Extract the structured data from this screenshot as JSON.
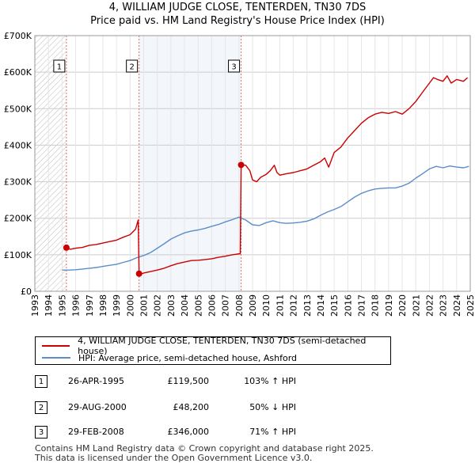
{
  "title_line1": "4, WILLIAM JUDGE CLOSE, TENTERDEN, TN30 7DS",
  "title_line2": "Price paid vs. HM Land Registry's House Price Index (HPI)",
  "colors": {
    "property": "#cc0000",
    "hpi": "#5b8ec7",
    "shade": "#dce6f2",
    "grid": "#cccccc",
    "marker_line": "#ee6666"
  },
  "chart_data": {
    "type": "line",
    "ylabel": "",
    "xlabel": "",
    "xlim": [
      1993,
      2025
    ],
    "ylim": [
      0,
      700000
    ],
    "y_ticks": [
      0,
      100000,
      200000,
      300000,
      400000,
      500000,
      600000,
      700000
    ],
    "y_tick_labels": [
      "£0",
      "£100K",
      "£200K",
      "£300K",
      "£400K",
      "£500K",
      "£600K",
      "£700K"
    ],
    "x_ticks": [
      1993,
      1994,
      1995,
      1996,
      1997,
      1998,
      1999,
      2000,
      2001,
      2002,
      2003,
      2004,
      2005,
      2006,
      2007,
      2008,
      2009,
      2010,
      2011,
      2012,
      2013,
      2014,
      2015,
      2016,
      2017,
      2018,
      2019,
      2020,
      2021,
      2022,
      2023,
      2024,
      2025
    ],
    "x_tick_labels": [
      "1993",
      "1994",
      "1995",
      "1996",
      "1997",
      "1998",
      "1999",
      "2000",
      "2001",
      "2002",
      "2003",
      "2004",
      "2005",
      "2006",
      "2007",
      "2008",
      "2009",
      "2010",
      "2011",
      "2012",
      "2013",
      "2014",
      "2015",
      "2016",
      "2017",
      "2018",
      "2019",
      "2020",
      "2021",
      "2022",
      "2023",
      "2024",
      "2025"
    ],
    "hatched_until": 1995.32,
    "series": [
      {
        "name": "4, WILLIAM JUDGE CLOSE, TENTERDEN, TN30 7DS (semi-detached house)",
        "x": [
          1995.32,
          1995.6,
          1996.0,
          1996.5,
          1997.0,
          1997.5,
          1998.0,
          1998.5,
          1999.0,
          1999.5,
          2000.0,
          2000.4,
          2000.6,
          2000.66,
          2000.75,
          2001.0,
          2001.5,
          2002.0,
          2002.5,
          2003.0,
          2003.5,
          2004.0,
          2004.5,
          2005.0,
          2005.5,
          2006.0,
          2006.5,
          2007.0,
          2007.5,
          2008.1,
          2008.16,
          2008.5,
          2008.8,
          2009.0,
          2009.3,
          2009.6,
          2010.0,
          2010.3,
          2010.6,
          2010.8,
          2011.0,
          2011.5,
          2012.0,
          2012.5,
          2013.0,
          2013.5,
          2014.0,
          2014.3,
          2014.6,
          2015.0,
          2015.5,
          2016.0,
          2016.5,
          2017.0,
          2017.5,
          2018.0,
          2018.5,
          2019.0,
          2019.5,
          2020.0,
          2020.5,
          2021.0,
          2021.5,
          2022.0,
          2022.3,
          2022.6,
          2023.0,
          2023.3,
          2023.6,
          2024.0,
          2024.5,
          2024.8
        ],
        "values": [
          119500,
          115000,
          118000,
          120000,
          126000,
          128000,
          132000,
          136000,
          140000,
          148000,
          155000,
          170000,
          195000,
          48200,
          46000,
          50000,
          54000,
          58000,
          63000,
          70000,
          76000,
          80000,
          84000,
          85000,
          87000,
          89000,
          93000,
          96000,
          100000,
          103000,
          346000,
          345000,
          330000,
          305000,
          300000,
          312000,
          320000,
          330000,
          345000,
          325000,
          318000,
          322000,
          325000,
          330000,
          335000,
          345000,
          355000,
          365000,
          340000,
          380000,
          395000,
          420000,
          440000,
          460000,
          475000,
          485000,
          490000,
          487000,
          492000,
          485000,
          500000,
          520000,
          545000,
          570000,
          585000,
          580000,
          575000,
          590000,
          570000,
          580000,
          575000,
          585000
        ]
      },
      {
        "name": "HPI: Average price, semi-detached house, Ashford",
        "x": [
          1995.0,
          1995.5,
          1996.0,
          1996.5,
          1997.0,
          1997.5,
          1998.0,
          1998.5,
          1999.0,
          1999.5,
          2000.0,
          2000.5,
          2001.0,
          2001.5,
          2002.0,
          2002.5,
          2003.0,
          2003.5,
          2004.0,
          2004.5,
          2005.0,
          2005.5,
          2006.0,
          2006.5,
          2007.0,
          2007.5,
          2008.0,
          2008.5,
          2009.0,
          2009.5,
          2010.0,
          2010.5,
          2011.0,
          2011.5,
          2012.0,
          2012.5,
          2013.0,
          2013.5,
          2014.0,
          2014.5,
          2015.0,
          2015.5,
          2016.0,
          2016.5,
          2017.0,
          2017.5,
          2018.0,
          2018.5,
          2019.0,
          2019.5,
          2020.0,
          2020.5,
          2021.0,
          2021.5,
          2022.0,
          2022.5,
          2023.0,
          2023.5,
          2024.0,
          2024.5,
          2024.9
        ],
        "values": [
          58000,
          58000,
          59000,
          61000,
          63000,
          65000,
          68000,
          71000,
          74000,
          79000,
          84000,
          92000,
          98000,
          106000,
          118000,
          130000,
          143000,
          152000,
          160000,
          165000,
          168000,
          172000,
          178000,
          183000,
          190000,
          196000,
          203000,
          195000,
          182000,
          180000,
          188000,
          193000,
          188000,
          186000,
          187000,
          189000,
          192000,
          198000,
          208000,
          217000,
          224000,
          232000,
          245000,
          258000,
          268000,
          275000,
          280000,
          282000,
          283000,
          283000,
          288000,
          296000,
          310000,
          322000,
          335000,
          342000,
          338000,
          343000,
          340000,
          338000,
          342000
        ]
      }
    ],
    "sales": [
      {
        "label": "1",
        "x": 1995.32,
        "value": 119500
      },
      {
        "label": "2",
        "x": 2000.66,
        "value": 48200
      },
      {
        "label": "3",
        "x": 2008.16,
        "value": 346000
      }
    ]
  },
  "legend": {
    "property": "4, WILLIAM JUDGE CLOSE, TENTERDEN, TN30 7DS (semi-detached house)",
    "hpi": "HPI: Average price, semi-detached house, Ashford"
  },
  "transactions": [
    {
      "num": "1",
      "date": "26-APR-1995",
      "price": "£119,500",
      "hpi": "103% ↑ HPI"
    },
    {
      "num": "2",
      "date": "29-AUG-2000",
      "price": "£48,200",
      "hpi": "50% ↓ HPI"
    },
    {
      "num": "3",
      "date": "29-FEB-2008",
      "price": "£346,000",
      "hpi": "71% ↑ HPI"
    }
  ],
  "footer_line1": "Contains HM Land Registry data © Crown copyright and database right 2025.",
  "footer_line2": "This data is licensed under the Open Government Licence v3.0."
}
